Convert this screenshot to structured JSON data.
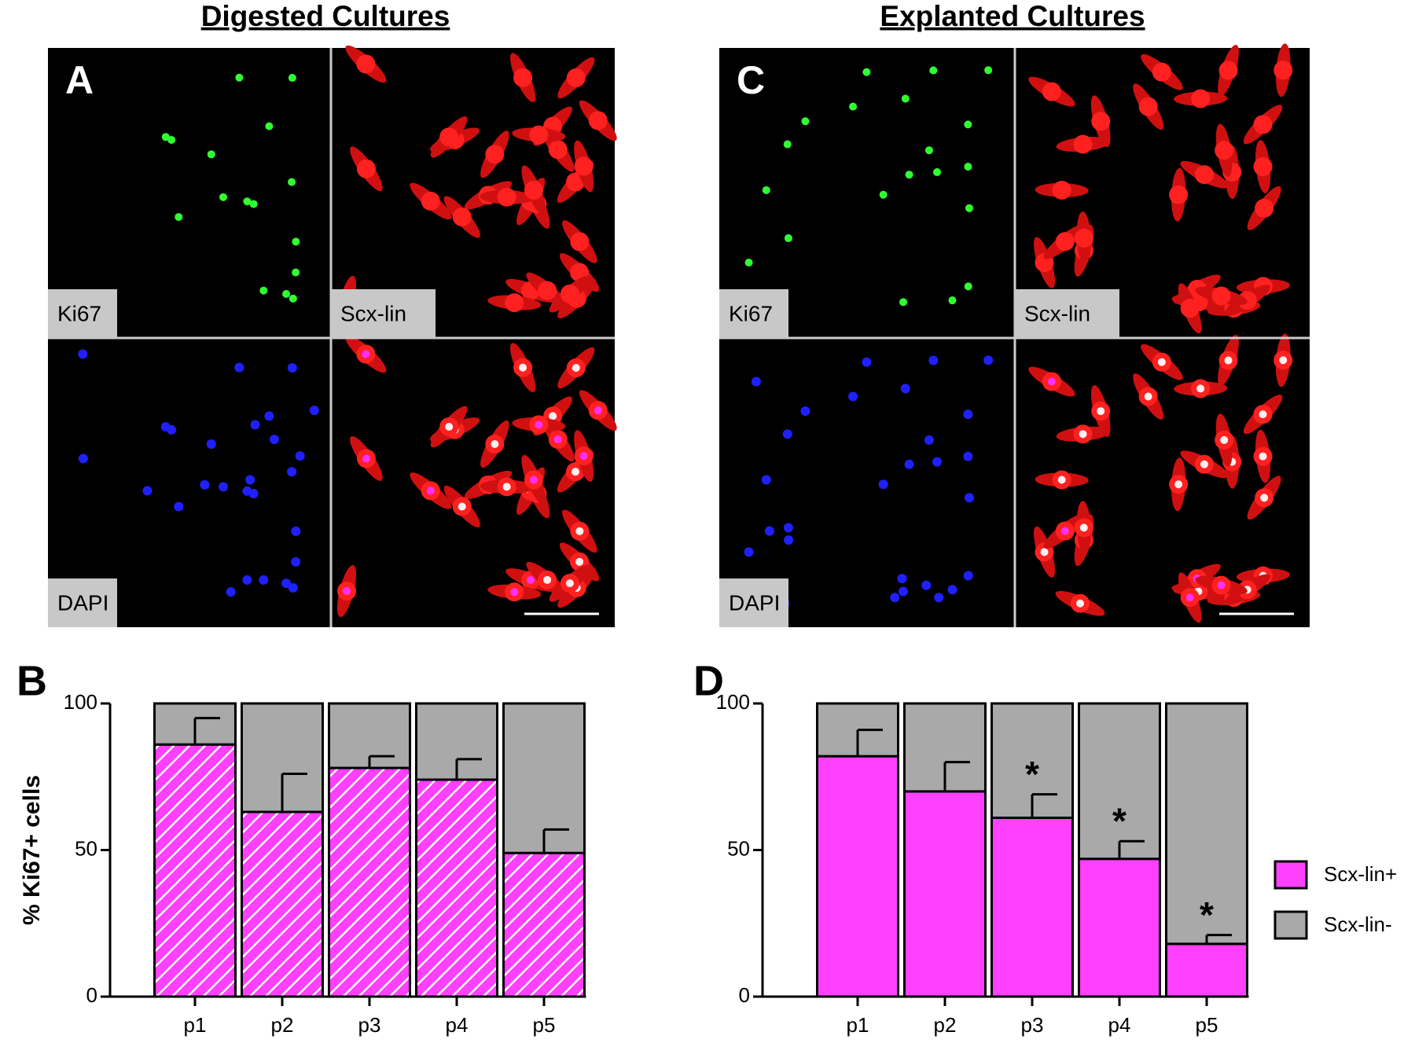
{
  "panels": [
    {
      "title": "Digested Cultures",
      "label": "A",
      "channels": [
        {
          "name": "Ki67",
          "color": "#22e022"
        },
        {
          "name": "Scx-lin",
          "color": "#ff1010"
        },
        {
          "name": "DAPI",
          "color": "#1010ff"
        }
      ]
    },
    {
      "title": "Explanted Cultures",
      "label": "C",
      "channels": [
        {
          "name": "Ki67",
          "color": "#22e022"
        },
        {
          "name": "Scx-lin",
          "color": "#ff1010"
        },
        {
          "name": "DAPI",
          "color": "#1010ff"
        }
      ]
    }
  ],
  "chart_data": [
    {
      "type": "stacked-bar",
      "label": "B",
      "y_label": "% Ki67+ cells",
      "categories": [
        "p1",
        "p2",
        "p3",
        "p4",
        "p5"
      ],
      "series": [
        {
          "color": "#ff40ff",
          "pattern": "hatch",
          "values": [
            86,
            63,
            78,
            74,
            49
          ],
          "errors": [
            9,
            13,
            4,
            7,
            8
          ]
        },
        {
          "color": "#a9a9a9",
          "values": [
            14,
            37,
            22,
            26,
            51
          ]
        }
      ],
      "ylim": [
        0,
        100
      ],
      "yticks": [
        0,
        50,
        100
      ]
    },
    {
      "type": "stacked-bar",
      "label": "D",
      "categories": [
        "p1",
        "p2",
        "p3",
        "p4",
        "p5"
      ],
      "series": [
        {
          "name": "Scx-lin+",
          "color": "#ff40ff",
          "values": [
            82,
            70,
            61,
            47,
            18
          ],
          "errors": [
            9,
            10,
            8,
            6,
            3
          ]
        },
        {
          "name": "Scx-lin-",
          "color": "#a9a9a9",
          "values": [
            18,
            30,
            39,
            53,
            82
          ]
        }
      ],
      "annotations": [
        {
          "x": "p3",
          "text": "*"
        },
        {
          "x": "p4",
          "text": "*"
        },
        {
          "x": "p5",
          "text": "*"
        }
      ],
      "ylim": [
        0,
        100
      ],
      "yticks": [
        0,
        50,
        100
      ],
      "legend": "right"
    }
  ]
}
